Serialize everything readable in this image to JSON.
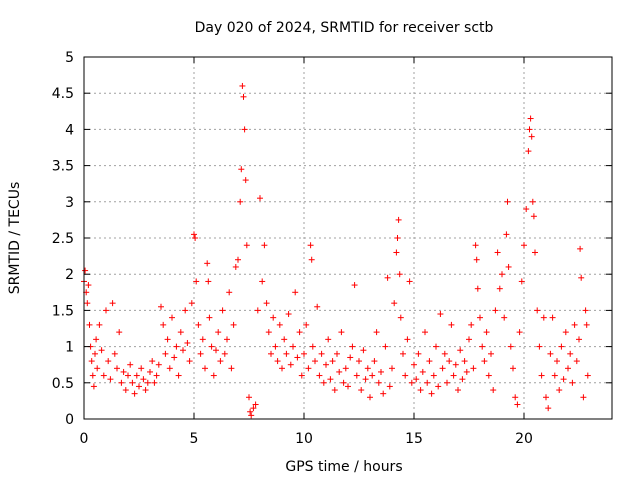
{
  "chart_data": {
    "type": "scatter",
    "title": "Day 020 of 2024, SRMTID for receiver sctb",
    "xlabel": "GPS time / hours",
    "ylabel": "SRMTID / TECUs",
    "xlim": [
      0,
      24
    ],
    "ylim": [
      0,
      5
    ],
    "grid": true,
    "marker": "+",
    "color": "#ff0000",
    "x_ticks": [
      0,
      5,
      10,
      15,
      20
    ],
    "x_tick_labels": [
      "0",
      "5",
      "10",
      "15",
      "20"
    ],
    "y_ticks": [
      0,
      0.5,
      1,
      1.5,
      2,
      2.5,
      3,
      3.5,
      4,
      4.5,
      5
    ],
    "y_tick_labels": [
      "0",
      "0.5",
      "1",
      "1.5",
      "2",
      "2.5",
      "3",
      "3.5",
      "4",
      "4.5",
      "5"
    ],
    "points": [
      [
        0.0,
        1.9
      ],
      [
        0.05,
        2.05
      ],
      [
        0.1,
        1.75
      ],
      [
        0.15,
        1.6
      ],
      [
        0.2,
        1.85
      ],
      [
        0.25,
        1.3
      ],
      [
        0.3,
        1.0
      ],
      [
        0.35,
        0.8
      ],
      [
        0.4,
        0.6
      ],
      [
        0.45,
        0.45
      ],
      [
        0.5,
        0.9
      ],
      [
        0.55,
        1.1
      ],
      [
        0.6,
        0.7
      ],
      [
        0.7,
        1.3
      ],
      [
        0.8,
        0.95
      ],
      [
        0.9,
        0.6
      ],
      [
        1.0,
        1.5
      ],
      [
        1.1,
        0.8
      ],
      [
        1.2,
        0.55
      ],
      [
        1.3,
        1.6
      ],
      [
        1.4,
        0.9
      ],
      [
        1.5,
        0.7
      ],
      [
        1.6,
        1.2
      ],
      [
        1.7,
        0.5
      ],
      [
        1.8,
        0.65
      ],
      [
        1.9,
        0.4
      ],
      [
        2.0,
        0.6
      ],
      [
        2.1,
        0.75
      ],
      [
        2.2,
        0.5
      ],
      [
        2.3,
        0.35
      ],
      [
        2.4,
        0.6
      ],
      [
        2.5,
        0.45
      ],
      [
        2.6,
        0.7
      ],
      [
        2.7,
        0.55
      ],
      [
        2.8,
        0.4
      ],
      [
        2.9,
        0.5
      ],
      [
        3.0,
        0.65
      ],
      [
        3.1,
        0.8
      ],
      [
        3.2,
        0.5
      ],
      [
        3.3,
        0.6
      ],
      [
        3.4,
        0.75
      ],
      [
        3.5,
        1.55
      ],
      [
        3.6,
        1.3
      ],
      [
        3.7,
        0.9
      ],
      [
        3.8,
        1.1
      ],
      [
        3.9,
        0.7
      ],
      [
        4.0,
        1.4
      ],
      [
        4.1,
        0.85
      ],
      [
        4.2,
        1.0
      ],
      [
        4.3,
        0.6
      ],
      [
        4.4,
        1.2
      ],
      [
        4.5,
        0.95
      ],
      [
        4.6,
        1.5
      ],
      [
        4.7,
        1.05
      ],
      [
        4.8,
        0.8
      ],
      [
        4.9,
        1.6
      ],
      [
        5.0,
        2.55
      ],
      [
        5.05,
        2.5
      ],
      [
        5.1,
        1.9
      ],
      [
        5.2,
        1.3
      ],
      [
        5.3,
        0.9
      ],
      [
        5.4,
        1.1
      ],
      [
        5.5,
        0.7
      ],
      [
        5.6,
        2.15
      ],
      [
        5.65,
        1.9
      ],
      [
        5.7,
        1.4
      ],
      [
        5.8,
        1.0
      ],
      [
        5.9,
        0.6
      ],
      [
        6.0,
        0.95
      ],
      [
        6.1,
        1.2
      ],
      [
        6.2,
        0.8
      ],
      [
        6.3,
        1.5
      ],
      [
        6.4,
        0.9
      ],
      [
        6.5,
        1.1
      ],
      [
        6.6,
        1.75
      ],
      [
        6.7,
        0.7
      ],
      [
        6.8,
        1.3
      ],
      [
        6.9,
        2.1
      ],
      [
        7.0,
        2.2
      ],
      [
        7.1,
        3.0
      ],
      [
        7.15,
        3.45
      ],
      [
        7.2,
        4.6
      ],
      [
        7.25,
        4.45
      ],
      [
        7.3,
        4.0
      ],
      [
        7.35,
        3.3
      ],
      [
        7.4,
        2.4
      ],
      [
        7.5,
        0.3
      ],
      [
        7.55,
        0.1
      ],
      [
        7.6,
        0.05
      ],
      [
        7.7,
        0.15
      ],
      [
        7.8,
        0.2
      ],
      [
        7.9,
        1.5
      ],
      [
        8.0,
        3.05
      ],
      [
        8.1,
        1.9
      ],
      [
        8.2,
        2.4
      ],
      [
        8.3,
        1.6
      ],
      [
        8.4,
        1.2
      ],
      [
        8.5,
        0.9
      ],
      [
        8.6,
        1.4
      ],
      [
        8.7,
        1.0
      ],
      [
        8.8,
        0.8
      ],
      [
        8.9,
        1.3
      ],
      [
        9.0,
        0.7
      ],
      [
        9.1,
        1.1
      ],
      [
        9.2,
        0.9
      ],
      [
        9.3,
        1.45
      ],
      [
        9.4,
        0.75
      ],
      [
        9.5,
        1.0
      ],
      [
        9.6,
        1.75
      ],
      [
        9.7,
        0.85
      ],
      [
        9.8,
        1.2
      ],
      [
        9.9,
        0.6
      ],
      [
        10.0,
        0.9
      ],
      [
        10.1,
        1.3
      ],
      [
        10.2,
        0.7
      ],
      [
        10.3,
        2.4
      ],
      [
        10.35,
        2.2
      ],
      [
        10.4,
        1.0
      ],
      [
        10.5,
        0.8
      ],
      [
        10.6,
        1.55
      ],
      [
        10.7,
        0.6
      ],
      [
        10.8,
        0.9
      ],
      [
        10.9,
        0.5
      ],
      [
        11.0,
        0.75
      ],
      [
        11.1,
        1.1
      ],
      [
        11.2,
        0.55
      ],
      [
        11.3,
        0.8
      ],
      [
        11.4,
        0.4
      ],
      [
        11.5,
        0.9
      ],
      [
        11.6,
        0.65
      ],
      [
        11.7,
        1.2
      ],
      [
        11.8,
        0.5
      ],
      [
        11.9,
        0.7
      ],
      [
        12.0,
        0.45
      ],
      [
        12.1,
        0.85
      ],
      [
        12.2,
        1.0
      ],
      [
        12.3,
        1.85
      ],
      [
        12.4,
        0.6
      ],
      [
        12.5,
        0.8
      ],
      [
        12.6,
        0.4
      ],
      [
        12.7,
        0.95
      ],
      [
        12.8,
        0.55
      ],
      [
        12.9,
        0.7
      ],
      [
        13.0,
        0.3
      ],
      [
        13.1,
        0.6
      ],
      [
        13.2,
        0.8
      ],
      [
        13.3,
        1.2
      ],
      [
        13.4,
        0.5
      ],
      [
        13.5,
        0.65
      ],
      [
        13.6,
        0.35
      ],
      [
        13.7,
        1.0
      ],
      [
        13.8,
        1.95
      ],
      [
        13.9,
        0.45
      ],
      [
        14.0,
        0.7
      ],
      [
        14.1,
        1.6
      ],
      [
        14.2,
        2.3
      ],
      [
        14.25,
        2.5
      ],
      [
        14.3,
        2.75
      ],
      [
        14.35,
        2.0
      ],
      [
        14.4,
        1.4
      ],
      [
        14.5,
        0.9
      ],
      [
        14.6,
        0.6
      ],
      [
        14.7,
        1.1
      ],
      [
        14.8,
        1.9
      ],
      [
        14.9,
        0.5
      ],
      [
        15.0,
        0.75
      ],
      [
        15.1,
        0.55
      ],
      [
        15.2,
        0.9
      ],
      [
        15.3,
        0.4
      ],
      [
        15.4,
        0.65
      ],
      [
        15.5,
        1.2
      ],
      [
        15.6,
        0.5
      ],
      [
        15.7,
        0.8
      ],
      [
        15.8,
        0.35
      ],
      [
        15.9,
        0.6
      ],
      [
        16.0,
        1.0
      ],
      [
        16.1,
        0.45
      ],
      [
        16.2,
        1.45
      ],
      [
        16.3,
        0.7
      ],
      [
        16.4,
        0.9
      ],
      [
        16.5,
        0.5
      ],
      [
        16.6,
        0.8
      ],
      [
        16.7,
        1.3
      ],
      [
        16.8,
        0.6
      ],
      [
        16.9,
        0.75
      ],
      [
        17.0,
        0.4
      ],
      [
        17.1,
        0.95
      ],
      [
        17.2,
        0.55
      ],
      [
        17.3,
        0.8
      ],
      [
        17.4,
        0.65
      ],
      [
        17.5,
        1.1
      ],
      [
        17.6,
        1.3
      ],
      [
        17.7,
        0.7
      ],
      [
        17.8,
        2.4
      ],
      [
        17.85,
        2.2
      ],
      [
        17.9,
        1.8
      ],
      [
        18.0,
        1.4
      ],
      [
        18.1,
        1.0
      ],
      [
        18.2,
        0.8
      ],
      [
        18.3,
        1.2
      ],
      [
        18.4,
        0.6
      ],
      [
        18.5,
        0.9
      ],
      [
        18.6,
        0.4
      ],
      [
        18.7,
        1.5
      ],
      [
        18.8,
        2.3
      ],
      [
        18.9,
        1.8
      ],
      [
        19.0,
        2.0
      ],
      [
        19.1,
        1.4
      ],
      [
        19.2,
        2.55
      ],
      [
        19.25,
        3.0
      ],
      [
        19.3,
        2.1
      ],
      [
        19.4,
        1.0
      ],
      [
        19.5,
        0.7
      ],
      [
        19.6,
        0.3
      ],
      [
        19.7,
        0.2
      ],
      [
        19.8,
        1.2
      ],
      [
        19.9,
        1.9
      ],
      [
        20.0,
        2.4
      ],
      [
        20.1,
        2.9
      ],
      [
        20.2,
        3.7
      ],
      [
        20.25,
        4.0
      ],
      [
        20.3,
        4.15
      ],
      [
        20.35,
        3.9
      ],
      [
        20.4,
        3.0
      ],
      [
        20.45,
        2.8
      ],
      [
        20.5,
        2.3
      ],
      [
        20.6,
        1.5
      ],
      [
        20.7,
        1.0
      ],
      [
        20.8,
        0.6
      ],
      [
        20.9,
        1.4
      ],
      [
        21.0,
        0.3
      ],
      [
        21.1,
        0.15
      ],
      [
        21.2,
        0.9
      ],
      [
        21.3,
        1.4
      ],
      [
        21.4,
        0.6
      ],
      [
        21.5,
        0.8
      ],
      [
        21.6,
        0.4
      ],
      [
        21.7,
        1.0
      ],
      [
        21.8,
        0.55
      ],
      [
        21.9,
        1.2
      ],
      [
        22.0,
        0.7
      ],
      [
        22.1,
        0.9
      ],
      [
        22.2,
        0.5
      ],
      [
        22.3,
        1.3
      ],
      [
        22.4,
        0.8
      ],
      [
        22.5,
        1.1
      ],
      [
        22.55,
        2.35
      ],
      [
        22.6,
        1.95
      ],
      [
        22.7,
        0.3
      ],
      [
        22.8,
        1.5
      ],
      [
        22.85,
        1.3
      ],
      [
        22.9,
        0.6
      ]
    ]
  }
}
